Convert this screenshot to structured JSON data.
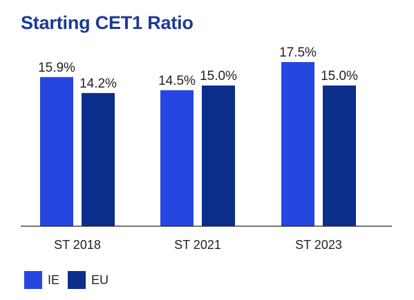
{
  "chart_data": {
    "type": "bar",
    "title": "Starting CET1 Ratio",
    "xlabel": "",
    "ylabel": "",
    "ylim": [
      0,
      17.5
    ],
    "grid": false,
    "legend_position": "bottom-left",
    "categories": [
      "ST 2018",
      "ST 2021",
      "ST 2023"
    ],
    "series": [
      {
        "name": "IE",
        "color": "#2546e0",
        "values": [
          15.9,
          14.5,
          17.5
        ],
        "labels": [
          "15.9%",
          "14.5%",
          "17.5%"
        ]
      },
      {
        "name": "EU",
        "color": "#0b2f8a",
        "values": [
          14.2,
          15.0,
          15.0
        ],
        "labels": [
          "14.2%",
          "15.0%",
          "15.0%"
        ]
      }
    ]
  }
}
